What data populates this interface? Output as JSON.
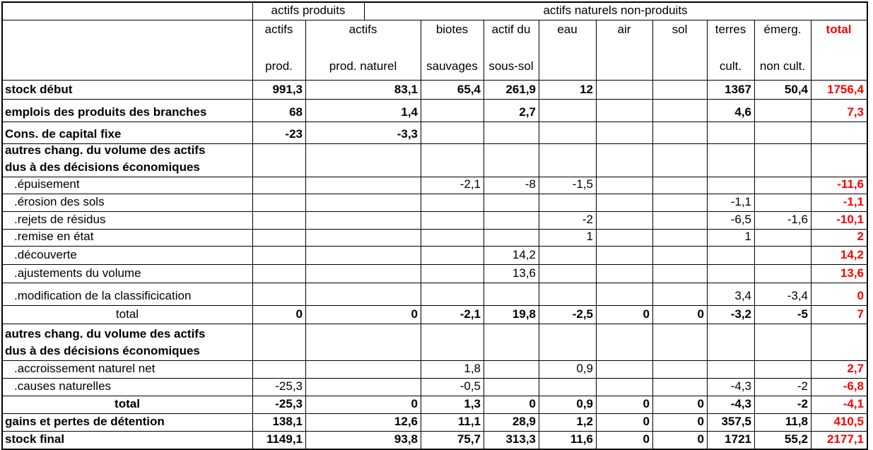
{
  "header": {
    "group_produced": "actifs produits",
    "group_natural": "actifs naturels non-produits",
    "columns": [
      {
        "lines": [
          "actifs",
          "prod."
        ]
      },
      {
        "lines": [
          "actifs",
          "prod. naturel"
        ]
      },
      {
        "lines": [
          "biotes",
          "sauvages"
        ]
      },
      {
        "lines": [
          "actif du",
          "sous-sol"
        ]
      },
      {
        "lines": [
          "eau"
        ]
      },
      {
        "lines": [
          "air"
        ]
      },
      {
        "lines": [
          "sol"
        ]
      },
      {
        "lines": [
          "terres",
          "cult."
        ]
      },
      {
        "lines": [
          "émerg.",
          "non cult."
        ]
      },
      {
        "lines": [
          "total"
        ],
        "color": "#ff0000"
      }
    ]
  },
  "rows": [
    {
      "lines": [
        "stock début"
      ],
      "bold": true,
      "values": [
        "991,3",
        "83,1",
        "65,4",
        "261,9",
        "12",
        null,
        null,
        "1367",
        "50,4",
        "1756,4"
      ]
    },
    {
      "lines": [
        "emplois des produits des branches"
      ],
      "bold": true,
      "values": [
        "68",
        "1,4",
        null,
        "2,7",
        null,
        null,
        null,
        "4,6",
        null,
        "7,3"
      ]
    },
    {
      "lines": [
        "Cons. de capital fixe"
      ],
      "bold": true,
      "values": [
        "-23",
        "-3,3",
        null,
        null,
        null,
        null,
        null,
        null,
        null,
        null
      ]
    },
    {
      "lines": [
        "autres chang. du volume  des  actifs",
        "dus à des décisions économiques"
      ],
      "bold": true,
      "values": [
        null,
        null,
        null,
        null,
        null,
        null,
        null,
        null,
        null,
        null
      ]
    },
    {
      "lines": [
        ".épuisement"
      ],
      "indent": true,
      "values": [
        null,
        null,
        "-2,1",
        "-8",
        "-1,5",
        null,
        null,
        null,
        null,
        "-11,6"
      ]
    },
    {
      "lines": [
        ".érosion des sols"
      ],
      "indent": true,
      "values": [
        null,
        null,
        null,
        null,
        null,
        null,
        null,
        "-1,1",
        null,
        "-1,1"
      ]
    },
    {
      "lines": [
        ".rejets de résidus"
      ],
      "indent": true,
      "values": [
        null,
        null,
        null,
        null,
        "-2",
        null,
        null,
        "-6,5",
        "-1,6",
        "-10,1"
      ]
    },
    {
      "lines": [
        ".remise en état"
      ],
      "indent": true,
      "values": [
        null,
        null,
        null,
        null,
        "1",
        null,
        null,
        "1",
        null,
        "2"
      ]
    },
    {
      "lines": [
        ".découverte"
      ],
      "indent": true,
      "values": [
        null,
        null,
        null,
        "14,2",
        null,
        null,
        null,
        null,
        null,
        "14,2"
      ]
    },
    {
      "lines": [
        ".ajustements du volume"
      ],
      "indent": true,
      "values": [
        null,
        null,
        null,
        "13,6",
        null,
        null,
        null,
        null,
        null,
        "13,6"
      ]
    },
    {
      "lines": [
        ".modification de la classificication"
      ],
      "indent": true,
      "values": [
        null,
        null,
        null,
        null,
        null,
        null,
        null,
        "3,4",
        "-3,4",
        "0"
      ]
    },
    {
      "lines": [
        "total"
      ],
      "label_align": "center",
      "values_bold": true,
      "values": [
        "0",
        "0",
        "-2,1",
        "19,8",
        "-2,5",
        "0",
        "0",
        "-3,2",
        "-5",
        "7"
      ]
    },
    {
      "lines": [
        "autres chang. du volume  des  actifs",
        "dus à des décisions économiques"
      ],
      "bold": true,
      "values": [
        null,
        null,
        null,
        null,
        null,
        null,
        null,
        null,
        null,
        null
      ]
    },
    {
      "lines": [
        ".accroissement naturel net"
      ],
      "indent": true,
      "values": [
        null,
        null,
        "1,8",
        null,
        "0,9",
        null,
        null,
        null,
        null,
        "2,7"
      ]
    },
    {
      "lines": [
        ".causes naturelles"
      ],
      "indent": true,
      "values": [
        "-25,3",
        null,
        "-0,5",
        null,
        null,
        null,
        null,
        "-4,3",
        "-2",
        "-6,8"
      ]
    },
    {
      "lines": [
        "total"
      ],
      "bold": true,
      "label_align": "center",
      "values": [
        "-25,3",
        "0",
        "1,3",
        "0",
        "0,9",
        "0",
        "0",
        "-4,3",
        "-2",
        "-4,1"
      ]
    },
    {
      "lines": [
        "gains et pertes de détention"
      ],
      "bold": true,
      "values": [
        "138,1",
        "12,6",
        "11,1",
        "28,9",
        "1,2",
        "0",
        "0",
        "357,5",
        "11,8",
        "410,5"
      ]
    },
    {
      "lines": [
        "stock final"
      ],
      "bold": true,
      "values": [
        "1149,1",
        "93,8",
        "75,7",
        "313,3",
        "11,6",
        "0",
        "0",
        "1721",
        "55,2",
        "2177,1"
      ]
    }
  ]
}
